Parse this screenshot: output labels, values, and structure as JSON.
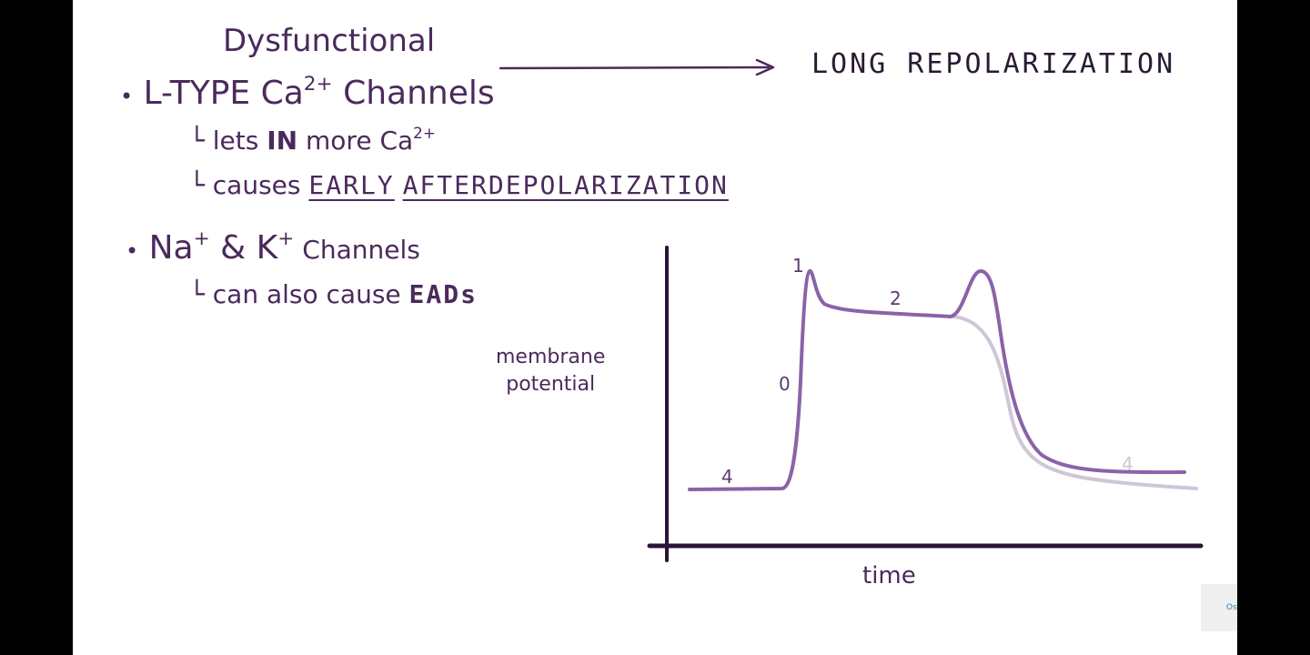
{
  "title": "Dysfunctional",
  "arrow_target": "LONG REPOLARIZATION",
  "items": {
    "ltype": {
      "prefix": "L-TYPE Ca",
      "sup": "2+",
      "suffix": " Channels",
      "sub1": {
        "a": "lets ",
        "b": "IN",
        "c": " more Ca",
        "sup": "2+"
      },
      "sub2": {
        "a": "causes ",
        "b": "EARLY",
        "c": " ",
        "d": "AFTERDEPOLARIZATION"
      }
    },
    "nak": {
      "na": "Na",
      "na_sup": "+",
      "amp": " & ",
      "k": "K",
      "k_sup": "+",
      "suffix": " Channels",
      "sub1": {
        "a": "can also cause ",
        "b": "EADs"
      }
    }
  },
  "graph": {
    "ylabel_line1": "membrane",
    "ylabel_line2": "potential",
    "xlabel": "time",
    "phases": [
      "0",
      "1",
      "2",
      "4",
      "4"
    ]
  },
  "logo": "Osmosis",
  "colors": {
    "ink": "#4a2a5c",
    "curve": "#8a63a8",
    "normal_curve": "#cfc6d6",
    "axes": "#2a1438"
  }
}
